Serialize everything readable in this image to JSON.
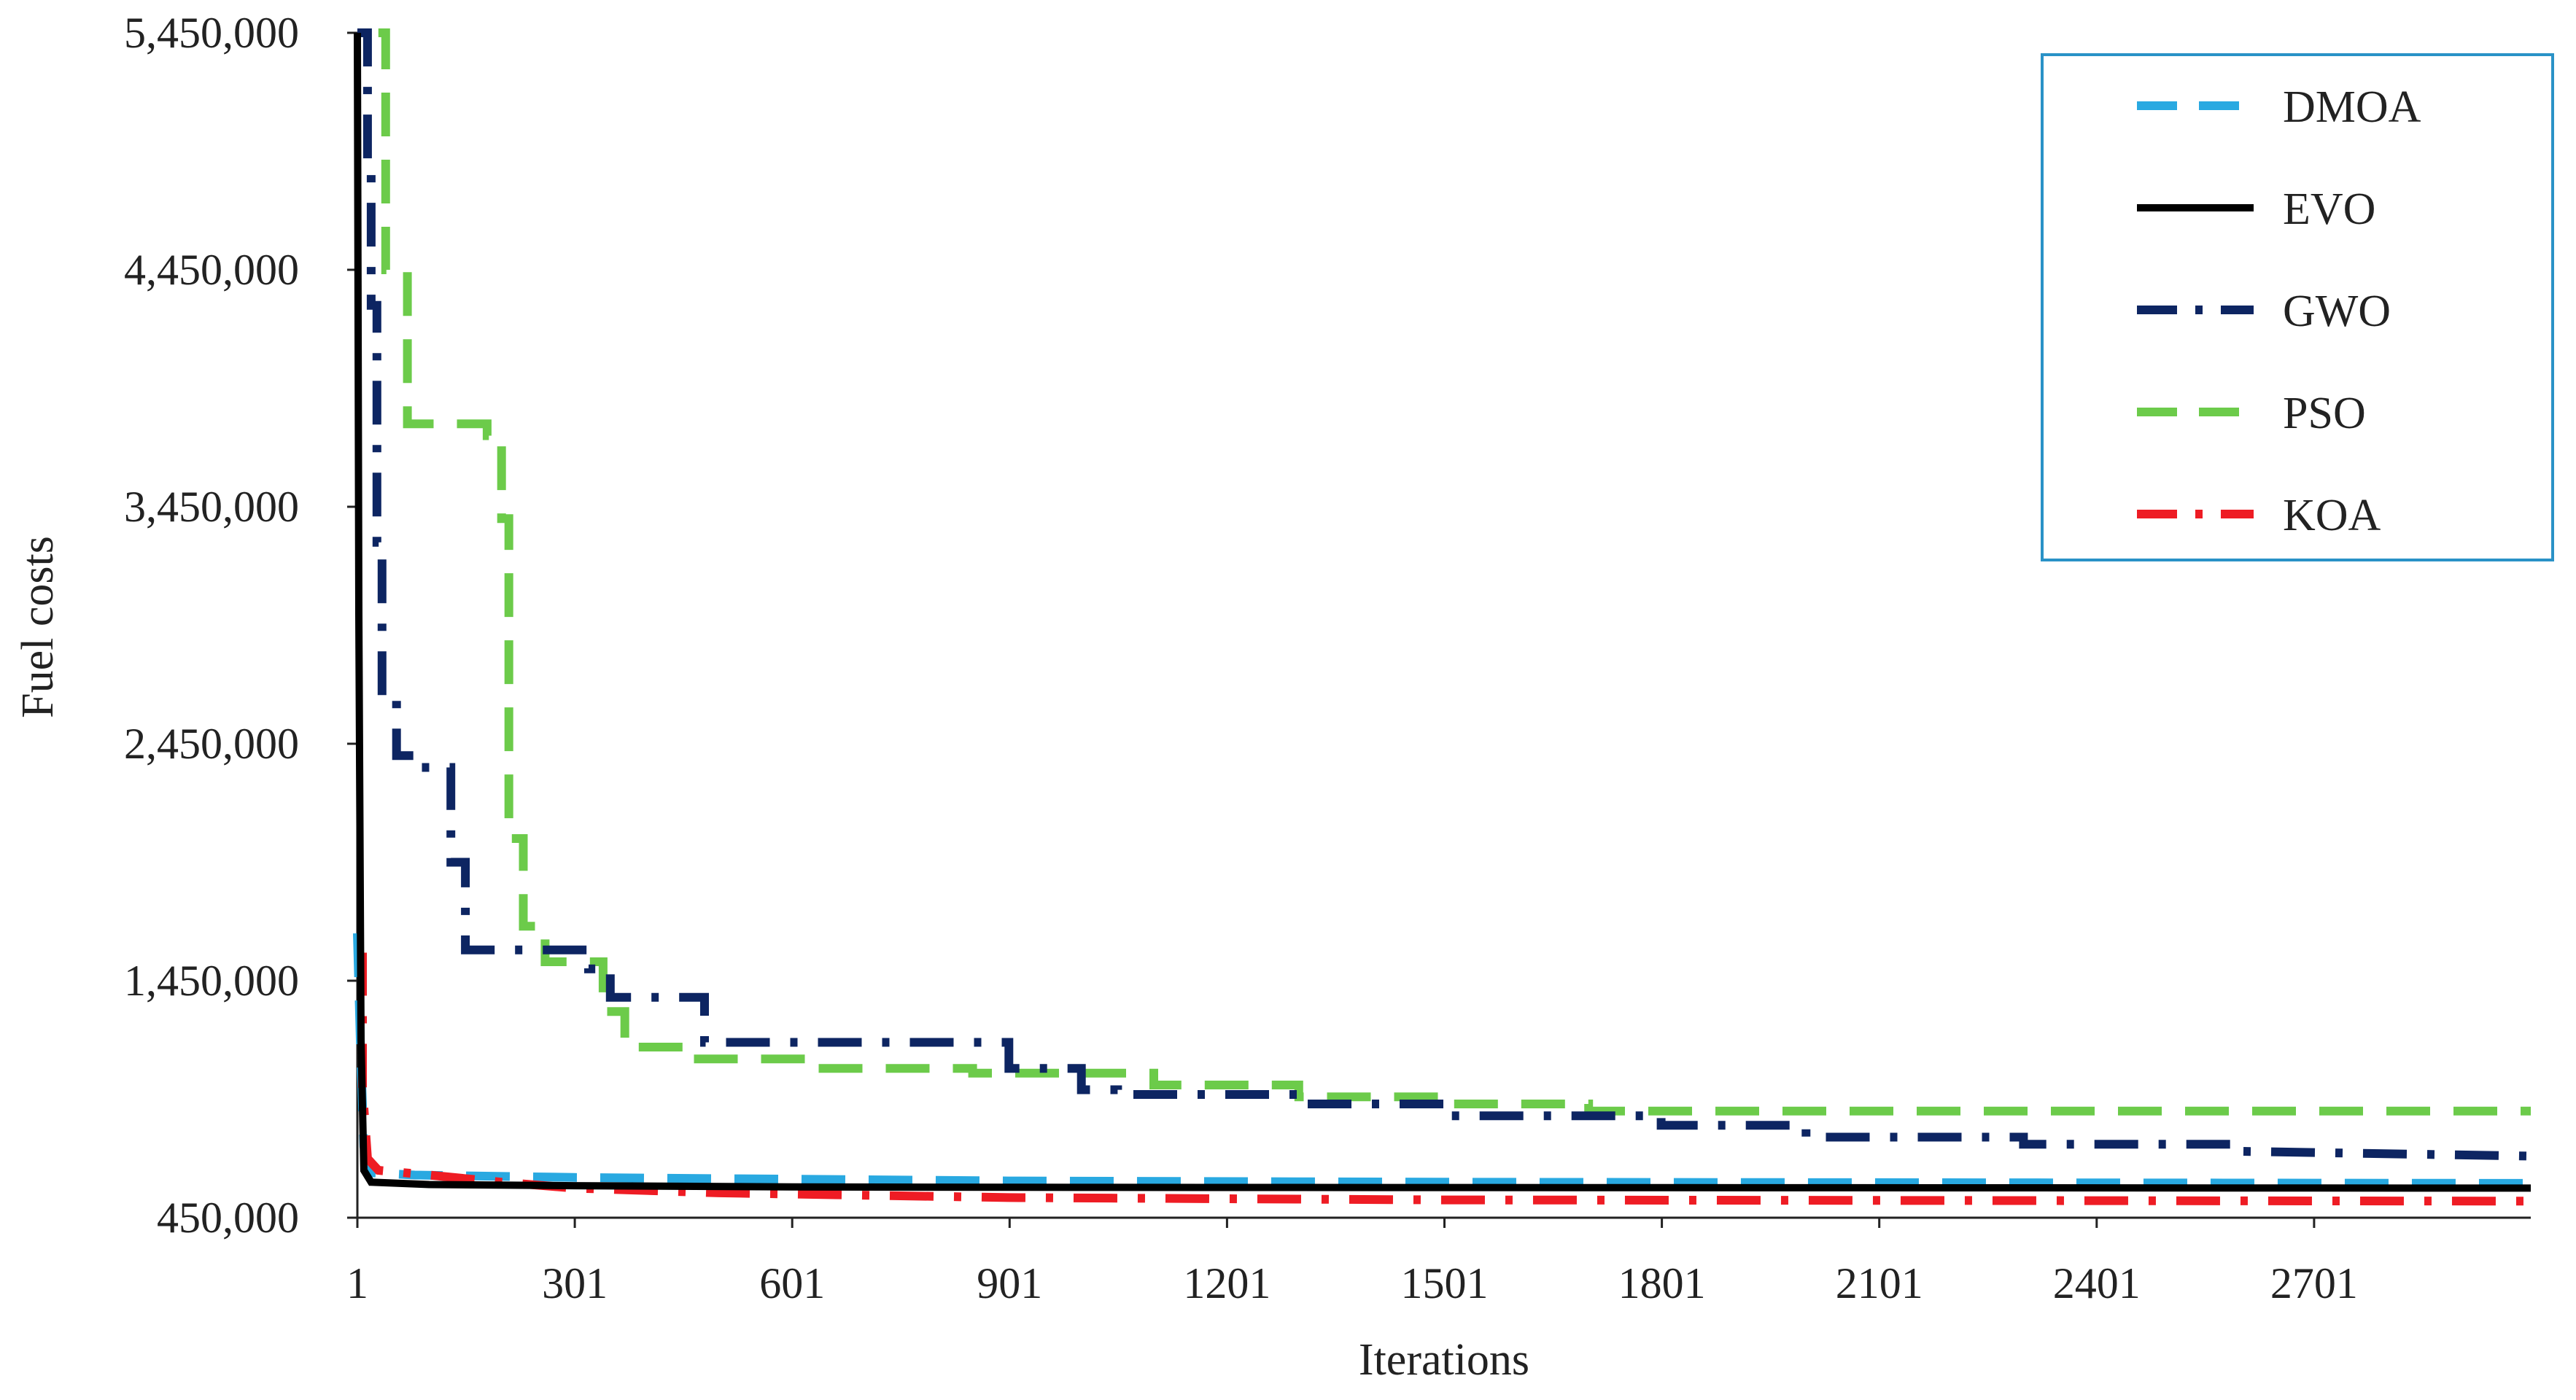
{
  "chart_data": {
    "type": "line",
    "title": "",
    "xlabel": "Iterations",
    "ylabel": "Fuel costs",
    "xlim": [
      1,
      3000
    ],
    "ylim": [
      450000,
      5450000
    ],
    "x_ticks": [
      1,
      301,
      601,
      901,
      1201,
      1501,
      1801,
      2101,
      2401,
      2701
    ],
    "x_tick_labels": [
      "1",
      "301",
      "601",
      "901",
      "1201",
      "1501",
      "1801",
      "2101",
      "2401",
      "2701"
    ],
    "y_ticks": [
      450000,
      1450000,
      2450000,
      3450000,
      4450000,
      5450000
    ],
    "y_tick_labels": [
      "450,000",
      "1,450,000",
      "2,450,000",
      "3,450,000",
      "4,450,000",
      "5,450,000"
    ],
    "grid": false,
    "legend_position": "top-right",
    "series": [
      {
        "name": "DMOA",
        "color": "#29a9e1",
        "dash": "dashed",
        "points": [
          [
            1,
            1650000
          ],
          [
            5,
            1200000
          ],
          [
            10,
            750000
          ],
          [
            20,
            640000
          ],
          [
            80,
            630000
          ],
          [
            300,
            620000
          ],
          [
            500,
            615000
          ],
          [
            900,
            605000
          ],
          [
            1500,
            600000
          ],
          [
            3000,
            595000
          ]
        ]
      },
      {
        "name": "EVO",
        "color": "#000000",
        "dash": "solid",
        "points": [
          [
            1,
            5450000
          ],
          [
            3,
            3000000
          ],
          [
            6,
            1200000
          ],
          [
            10,
            650000
          ],
          [
            20,
            600000
          ],
          [
            100,
            590000
          ],
          [
            300,
            585000
          ],
          [
            600,
            580000
          ],
          [
            1000,
            578000
          ],
          [
            3000,
            575000
          ]
        ]
      },
      {
        "name": "GWO",
        "color": "#0d2562",
        "dash": "dashdot",
        "points": [
          [
            1,
            5450000
          ],
          [
            15,
            5450000
          ],
          [
            15,
            4900000
          ],
          [
            20,
            4900000
          ],
          [
            20,
            4300000
          ],
          [
            28,
            4300000
          ],
          [
            28,
            3300000
          ],
          [
            35,
            3300000
          ],
          [
            35,
            2650000
          ],
          [
            55,
            2650000
          ],
          [
            55,
            2400000
          ],
          [
            90,
            2400000
          ],
          [
            90,
            2350000
          ],
          [
            130,
            2350000
          ],
          [
            130,
            1950000
          ],
          [
            150,
            1950000
          ],
          [
            150,
            1580000
          ],
          [
            320,
            1580000
          ],
          [
            320,
            1500000
          ],
          [
            350,
            1500000
          ],
          [
            350,
            1380000
          ],
          [
            480,
            1380000
          ],
          [
            480,
            1190000
          ],
          [
            900,
            1190000
          ],
          [
            900,
            1080000
          ],
          [
            1000,
            1080000
          ],
          [
            1000,
            990000
          ],
          [
            1050,
            990000
          ],
          [
            1050,
            970000
          ],
          [
            1300,
            970000
          ],
          [
            1300,
            930000
          ],
          [
            1500,
            930000
          ],
          [
            1500,
            880000
          ],
          [
            1800,
            880000
          ],
          [
            1800,
            840000
          ],
          [
            2000,
            840000
          ],
          [
            2000,
            790000
          ],
          [
            2300,
            790000
          ],
          [
            2300,
            760000
          ],
          [
            2600,
            760000
          ],
          [
            2600,
            730000
          ],
          [
            3000,
            710000
          ]
        ]
      },
      {
        "name": "PSO",
        "color": "#6ccb4a",
        "dash": "dashed",
        "points": [
          [
            30,
            5450000
          ],
          [
            40,
            5450000
          ],
          [
            40,
            4450000
          ],
          [
            70,
            4450000
          ],
          [
            70,
            3800000
          ],
          [
            180,
            3800000
          ],
          [
            180,
            3750000
          ],
          [
            200,
            3750000
          ],
          [
            200,
            3400000
          ],
          [
            210,
            3400000
          ],
          [
            210,
            2050000
          ],
          [
            230,
            2050000
          ],
          [
            230,
            1680000
          ],
          [
            260,
            1680000
          ],
          [
            260,
            1530000
          ],
          [
            340,
            1530000
          ],
          [
            340,
            1320000
          ],
          [
            370,
            1320000
          ],
          [
            370,
            1170000
          ],
          [
            450,
            1170000
          ],
          [
            450,
            1120000
          ],
          [
            620,
            1120000
          ],
          [
            620,
            1080000
          ],
          [
            850,
            1080000
          ],
          [
            850,
            1060000
          ],
          [
            1100,
            1060000
          ],
          [
            1100,
            1010000
          ],
          [
            1300,
            1010000
          ],
          [
            1300,
            960000
          ],
          [
            1500,
            960000
          ],
          [
            1500,
            930000
          ],
          [
            1700,
            930000
          ],
          [
            1700,
            900000
          ],
          [
            3000,
            900000
          ]
        ]
      },
      {
        "name": "KOA",
        "color": "#ee1c24",
        "dash": "dashdot",
        "points": [
          [
            1,
            1550000
          ],
          [
            8,
            1550000
          ],
          [
            8,
            1000000
          ],
          [
            15,
            700000
          ],
          [
            30,
            650000
          ],
          [
            100,
            630000
          ],
          [
            200,
            600000
          ],
          [
            300,
            575000
          ],
          [
            500,
            555000
          ],
          [
            900,
            535000
          ],
          [
            1500,
            525000
          ],
          [
            3000,
            520000
          ]
        ]
      }
    ]
  }
}
